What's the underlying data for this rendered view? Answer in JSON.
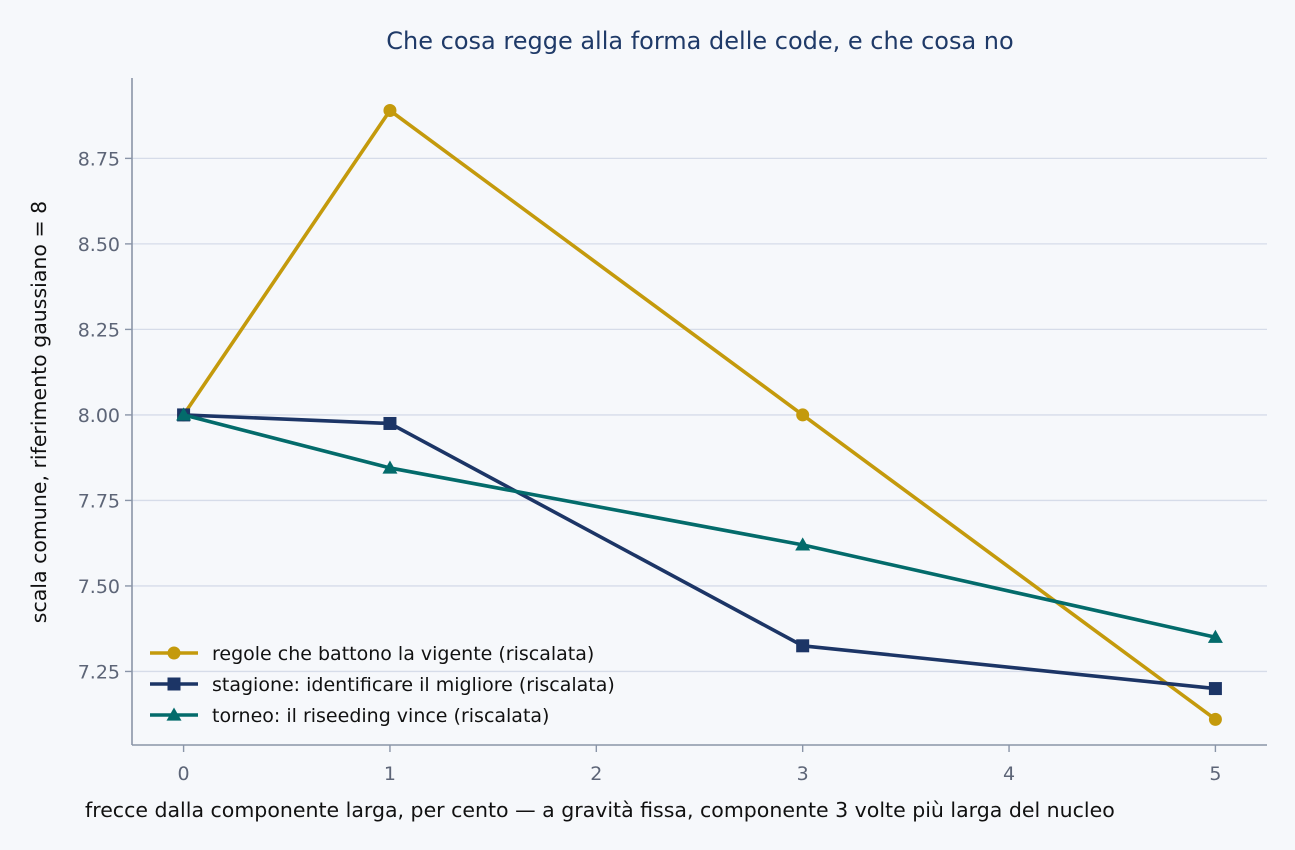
{
  "chart_data": {
    "type": "line",
    "title": "Che cosa regge alla forma delle code, e che cosa no",
    "xlabel": "frecce dalla componente larga, per cento — a gravità fissa, componente 3 volte più larga del nucleo",
    "ylabel": "scala comune, riferimento gaussiano = 8",
    "xlim": [
      -0.25,
      5.25
    ],
    "ylim": [
      7.035,
      8.985
    ],
    "xticks": [
      0,
      1,
      2,
      3,
      4,
      5
    ],
    "xtick_labels": [
      "0",
      "1",
      "2",
      "3",
      "4",
      "5"
    ],
    "yticks": [
      7.25,
      7.5,
      7.75,
      8.0,
      8.25,
      8.5,
      8.75
    ],
    "ytick_labels": [
      "7.25",
      "7.50",
      "7.75",
      "8.00",
      "8.25",
      "8.50",
      "8.75"
    ],
    "grid": "horizontal",
    "legend_position": "lower-left",
    "series": [
      {
        "name": "regole che battono la vigente (riscalata)",
        "color": "#c49a0c",
        "marker": "circle",
        "x": [
          0,
          1,
          3,
          5
        ],
        "y": [
          8.0,
          8.89,
          8.0,
          7.11
        ]
      },
      {
        "name": "stagione: identificare il migliore (riscalata)",
        "color": "#1c3566",
        "marker": "square",
        "x": [
          0,
          1,
          3,
          5
        ],
        "y": [
          8.0,
          7.975,
          7.325,
          7.2
        ]
      },
      {
        "name": "torneo: il riseeding vince (riscalata)",
        "color": "#036b6b",
        "marker": "triangle",
        "x": [
          0,
          1,
          3,
          5
        ],
        "y": [
          8.0,
          7.845,
          7.62,
          7.35
        ]
      }
    ]
  },
  "colors": {
    "background": "#f6f8fb",
    "title": "#1f3a68",
    "grid": "#d6dce9",
    "axis": "#8a95a8",
    "tick_label": "#5d6577"
  }
}
